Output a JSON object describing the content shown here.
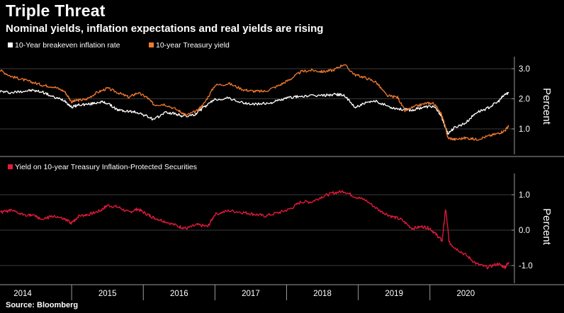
{
  "title": "Triple Threat",
  "subtitle": "Nominal yields, inflation expectations and real yields are rising",
  "source": "Source: Bloomberg",
  "colors": {
    "background": "#000000",
    "breakeven": "#ffffff",
    "treasury": "#f07a2e",
    "tips": "#e8193c",
    "grid": "#3a3a3a",
    "axis": "#9a9a9a"
  },
  "chart_data": [
    {
      "type": "line",
      "legend": [
        "10-Year breakeven inflation rate",
        "10-year Treasury yield"
      ],
      "ylabel": "Percent",
      "yticks": [
        "1.0",
        "2.0",
        "3.0"
      ],
      "ylim": [
        0.2,
        3.4
      ],
      "xlim": [
        2014.0,
        2021.1
      ],
      "grid": true,
      "series": [
        {
          "name": "10-Year breakeven inflation rate",
          "x": [
            2014.0,
            2014.15,
            2014.3,
            2014.45,
            2014.6,
            2014.75,
            2014.9,
            2015.0,
            2015.1,
            2015.25,
            2015.4,
            2015.5,
            2015.65,
            2015.8,
            2015.92,
            2016.05,
            2016.15,
            2016.3,
            2016.45,
            2016.55,
            2016.7,
            2016.85,
            2017.0,
            2017.2,
            2017.4,
            2017.55,
            2017.75,
            2017.9,
            2018.05,
            2018.2,
            2018.4,
            2018.55,
            2018.7,
            2018.8,
            2018.95,
            2019.1,
            2019.25,
            2019.45,
            2019.6,
            2019.75,
            2019.9,
            2020.05,
            2020.15,
            2020.2,
            2020.25,
            2020.35,
            2020.5,
            2020.65,
            2020.8,
            2020.95,
            2021.05,
            2021.1
          ],
          "y": [
            2.25,
            2.2,
            2.25,
            2.28,
            2.22,
            2.05,
            1.95,
            1.72,
            1.8,
            1.82,
            1.9,
            1.85,
            1.62,
            1.58,
            1.55,
            1.42,
            1.3,
            1.55,
            1.5,
            1.42,
            1.45,
            1.72,
            1.98,
            2.02,
            1.85,
            1.82,
            1.85,
            1.95,
            2.05,
            2.08,
            2.1,
            2.12,
            2.15,
            2.12,
            1.72,
            1.85,
            1.92,
            1.72,
            1.65,
            1.62,
            1.72,
            1.75,
            1.48,
            1.15,
            0.85,
            1.05,
            1.2,
            1.55,
            1.68,
            1.9,
            2.15,
            2.2
          ]
        },
        {
          "name": "10-year Treasury yield",
          "x": [
            2014.0,
            2014.15,
            2014.3,
            2014.45,
            2014.6,
            2014.75,
            2014.9,
            2015.0,
            2015.08,
            2015.2,
            2015.35,
            2015.5,
            2015.65,
            2015.8,
            2015.92,
            2016.05,
            2016.15,
            2016.3,
            2016.5,
            2016.6,
            2016.75,
            2016.85,
            2017.0,
            2017.2,
            2017.4,
            2017.55,
            2017.7,
            2017.9,
            2018.05,
            2018.2,
            2018.35,
            2018.5,
            2018.65,
            2018.8,
            2018.95,
            2019.1,
            2019.25,
            2019.4,
            2019.55,
            2019.65,
            2019.8,
            2019.95,
            2020.05,
            2020.15,
            2020.2,
            2020.25,
            2020.35,
            2020.5,
            2020.65,
            2020.8,
            2020.95,
            2021.05,
            2021.1
          ],
          "y": [
            2.95,
            2.75,
            2.65,
            2.55,
            2.45,
            2.4,
            2.25,
            1.9,
            1.95,
            1.98,
            2.2,
            2.35,
            2.2,
            2.05,
            2.2,
            2.05,
            1.8,
            1.82,
            1.6,
            1.45,
            1.6,
            1.85,
            2.45,
            2.5,
            2.3,
            2.25,
            2.25,
            2.45,
            2.65,
            2.9,
            2.95,
            2.9,
            2.95,
            3.15,
            2.8,
            2.7,
            2.55,
            2.1,
            2.05,
            1.6,
            1.75,
            1.85,
            1.85,
            1.55,
            1.2,
            0.7,
            0.65,
            0.7,
            0.65,
            0.75,
            0.85,
            0.95,
            1.1
          ]
        }
      ]
    },
    {
      "type": "line",
      "legend": [
        "Yield on 10-year Treasury Inflation-Protected Securities"
      ],
      "ylabel": "Percent",
      "yticks": [
        "-1.0",
        "0.0",
        "1.0"
      ],
      "ylim": [
        -1.5,
        1.6
      ],
      "xlim": [
        2014.0,
        2021.1
      ],
      "grid": true,
      "series": [
        {
          "name": "Yield on 10-year Treasury Inflation-Protected Securities",
          "x": [
            2014.0,
            2014.15,
            2014.3,
            2014.45,
            2014.6,
            2014.75,
            2014.9,
            2015.0,
            2015.1,
            2015.25,
            2015.4,
            2015.5,
            2015.65,
            2015.8,
            2015.92,
            2016.05,
            2016.15,
            2016.3,
            2016.5,
            2016.6,
            2016.75,
            2016.9,
            2017.0,
            2017.2,
            2017.4,
            2017.55,
            2017.7,
            2017.9,
            2018.05,
            2018.2,
            2018.35,
            2018.5,
            2018.65,
            2018.8,
            2018.95,
            2019.1,
            2019.3,
            2019.45,
            2019.6,
            2019.75,
            2019.9,
            2020.0,
            2020.1,
            2020.17,
            2020.22,
            2020.27,
            2020.35,
            2020.5,
            2020.65,
            2020.8,
            2020.95,
            2021.05,
            2021.1
          ],
          "y": [
            0.5,
            0.55,
            0.45,
            0.42,
            0.3,
            0.4,
            0.3,
            0.2,
            0.4,
            0.45,
            0.55,
            0.7,
            0.65,
            0.5,
            0.6,
            0.45,
            0.35,
            0.25,
            0.1,
            0.05,
            0.15,
            0.1,
            0.45,
            0.55,
            0.5,
            0.45,
            0.4,
            0.5,
            0.6,
            0.8,
            0.8,
            0.95,
            1.05,
            1.1,
            0.95,
            0.85,
            0.55,
            0.4,
            0.3,
            0.05,
            0.1,
            0.05,
            -0.15,
            -0.3,
            0.6,
            -0.35,
            -0.5,
            -0.7,
            -0.95,
            -1.05,
            -0.95,
            -1.05,
            -0.9
          ]
        }
      ]
    }
  ],
  "x_axis": {
    "years": [
      "2014",
      "2015",
      "2016",
      "2017",
      "2018",
      "2019",
      "2020"
    ]
  }
}
